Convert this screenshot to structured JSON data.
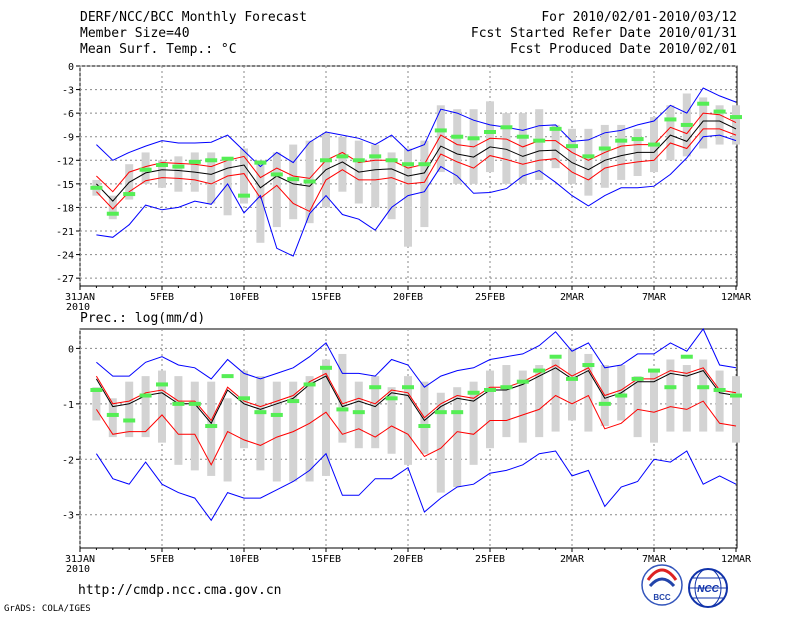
{
  "header": {
    "title": "DERF/NCC/BCC Monthly Forecast",
    "member_size": "Member Size=40",
    "for_period": "For 2010/02/01-2010/03/12",
    "fcst_started": "Fcst Started Refer Date 2010/01/31",
    "fcst_produced": "Fcst Produced Date 2010/02/01"
  },
  "footer": {
    "url": "http://cmdp.ncc.cma.gov.cn",
    "grads": "GrADS: COLA/IGES",
    "logo_bcc": "BCC",
    "logo_ncc": "NCC"
  },
  "colors": {
    "ensemble_mean": "#000000",
    "spread_inner": "#ff0000",
    "spread_outer": "#0000ff",
    "observed": "#55ee55",
    "box": "#d3d3d3",
    "grid": "#888888"
  },
  "chart_data": [
    {
      "type": "line",
      "title": "Mean Surf. Temp.: °C",
      "xlabel": "",
      "ylabel": "°C",
      "ylim": [
        -28,
        0
      ],
      "yticks": [
        0,
        -3,
        -6,
        -9,
        -12,
        -15,
        -18,
        -21,
        -24,
        -27
      ],
      "x_start": "31JAN 2010",
      "xtick_labels": [
        "31JAN",
        "5FEB",
        "10FEB",
        "15FEB",
        "20FEB",
        "25FEB",
        "2MAR",
        "7MAR",
        "12MAR"
      ],
      "xtick_days": [
        0,
        5,
        10,
        15,
        20,
        25,
        30,
        35,
        40
      ],
      "year_label": "2010",
      "days": [
        1,
        2,
        3,
        4,
        5,
        6,
        7,
        8,
        9,
        10,
        11,
        12,
        13,
        14,
        15,
        16,
        17,
        18,
        19,
        20,
        21,
        22,
        23,
        24,
        25,
        26,
        27,
        28,
        29,
        30,
        31,
        32,
        33,
        34,
        35,
        36,
        37,
        38,
        39,
        40
      ],
      "box_low": [
        -16.5,
        -19.5,
        -17.0,
        -15.0,
        -15.5,
        -16.0,
        -16.0,
        -17.5,
        -19.0,
        -17.5,
        -22.5,
        -20.5,
        -19.5,
        -20.0,
        -18.0,
        -16.0,
        -17.5,
        -18.0,
        -19.5,
        -23.0,
        -20.5,
        -13.5,
        -15.0,
        -15.0,
        -13.5,
        -15.0,
        -15.0,
        -14.5,
        -13.0,
        -15.0,
        -16.5,
        -15.5,
        -14.5,
        -14.0,
        -13.5,
        -12.0,
        -11.5,
        -10.5,
        -10.0,
        -10.0
      ],
      "box_high": [
        -14.5,
        -16.5,
        -12.5,
        -11.0,
        -12.0,
        -11.5,
        -11.0,
        -11.0,
        -12.0,
        -10.5,
        -12.0,
        -11.0,
        -10.0,
        -9.5,
        -8.5,
        -9.0,
        -9.5,
        -10.0,
        -11.0,
        -10.5,
        -9.5,
        -5.0,
        -5.5,
        -5.5,
        -4.5,
        -6.0,
        -6.0,
        -5.5,
        -7.5,
        -8.0,
        -8.0,
        -7.5,
        -7.5,
        -8.0,
        -6.5,
        -5.0,
        -3.5,
        -4.0,
        -5.0,
        -5.0
      ],
      "series": [
        {
          "name": "ensemble mean",
          "color": "#000000",
          "values": [
            -15.0,
            -17.2,
            -14.8,
            -13.6,
            -13.2,
            -13.3,
            -13.5,
            -13.8,
            -13.0,
            -12.6,
            -15.5,
            -14.0,
            -15.0,
            -15.3,
            -13.2,
            -12.2,
            -13.5,
            -13.2,
            -13.1,
            -14.0,
            -13.6,
            -10.2,
            -11.2,
            -11.6,
            -10.3,
            -10.6,
            -11.5,
            -10.8,
            -10.7,
            -12.3,
            -13.2,
            -12.0,
            -11.4,
            -11.0,
            -11.0,
            -8.8,
            -9.6,
            -7.0,
            -7.0,
            -8.0
          ]
        },
        {
          "name": "upper inner",
          "color": "#ff0000",
          "values": [
            -14.0,
            -16.0,
            -13.5,
            -12.8,
            -12.3,
            -12.4,
            -12.5,
            -12.8,
            -12.0,
            -11.5,
            -14.2,
            -13.0,
            -14.0,
            -14.3,
            -12.0,
            -11.0,
            -12.3,
            -12.0,
            -12.0,
            -13.0,
            -12.5,
            -8.8,
            -10.0,
            -10.3,
            -9.2,
            -9.3,
            -10.3,
            -9.5,
            -9.5,
            -11.0,
            -12.0,
            -11.0,
            -10.2,
            -10.0,
            -10.0,
            -7.8,
            -8.6,
            -6.0,
            -6.2,
            -7.2
          ]
        },
        {
          "name": "lower inner",
          "color": "#ff0000",
          "values": [
            -16.0,
            -18.2,
            -16.0,
            -14.6,
            -14.2,
            -14.3,
            -14.5,
            -15.0,
            -14.0,
            -13.7,
            -16.8,
            -15.2,
            -17.5,
            -18.5,
            -14.5,
            -13.2,
            -14.5,
            -14.5,
            -14.2,
            -15.0,
            -14.8,
            -11.2,
            -12.2,
            -13.0,
            -11.4,
            -11.9,
            -12.5,
            -12.0,
            -11.8,
            -13.5,
            -14.5,
            -13.0,
            -12.5,
            -12.2,
            -12.0,
            -9.8,
            -10.5,
            -8.0,
            -8.0,
            -8.8
          ]
        },
        {
          "name": "upper outer",
          "color": "#0000ff",
          "values": [
            -10.0,
            -12.0,
            -11.0,
            -10.2,
            -9.5,
            -9.8,
            -9.8,
            -9.7,
            -8.8,
            -10.8,
            -12.8,
            -11.0,
            -12.3,
            -9.7,
            -8.4,
            -8.8,
            -9.2,
            -10.0,
            -8.8,
            -10.8,
            -10.0,
            -5.5,
            -6.0,
            -6.9,
            -7.5,
            -7.8,
            -8.2,
            -7.6,
            -7.5,
            -9.6,
            -9.4,
            -8.5,
            -8.2,
            -7.5,
            -7.0,
            -5.0,
            -6.0,
            -2.8,
            -3.8,
            -4.6
          ]
        },
        {
          "name": "lower outer",
          "color": "#0000ff",
          "values": [
            -21.5,
            -21.8,
            -20.2,
            -17.7,
            -18.3,
            -18.0,
            -17.2,
            -17.6,
            -15.0,
            -18.7,
            -16.5,
            -23.2,
            -24.2,
            -18.8,
            -16.5,
            -18.9,
            -19.5,
            -20.9,
            -18.0,
            -16.5,
            -16.0,
            -12.8,
            -14.0,
            -16.2,
            -16.1,
            -15.6,
            -14.0,
            -13.3,
            -14.8,
            -16.5,
            -17.8,
            -16.5,
            -15.5,
            -15.5,
            -15.3,
            -13.8,
            -11.7,
            -9.0,
            -8.8,
            -9.5
          ]
        },
        {
          "name": "observed",
          "color": "#55ee55",
          "values": [
            -15.5,
            -18.8,
            -16.3,
            -13.2,
            -12.6,
            -12.8,
            -12.2,
            -12.0,
            -11.8,
            -16.5,
            -12.3,
            -13.8,
            -14.4,
            -14.7,
            -12.0,
            -11.5,
            -12.0,
            -11.5,
            -12.0,
            -12.5,
            -12.5,
            -8.2,
            -9.0,
            -9.2,
            -8.4,
            -7.8,
            -9.0,
            -9.5,
            -8.0,
            -10.2,
            -11.5,
            -10.5,
            -9.5,
            -9.3,
            -10.0,
            -6.8,
            -7.5,
            -4.8,
            -5.8,
            -6.5
          ]
        }
      ]
    },
    {
      "type": "line",
      "title": "Prec.: log(mm/d)",
      "xlabel": "",
      "ylabel": "log(mm/d)",
      "ylim": [
        -3.6,
        0.35
      ],
      "yticks": [
        0,
        -1,
        -2,
        -3
      ],
      "x_start": "31JAN 2010",
      "xtick_labels": [
        "31JAN",
        "5FEB",
        "10FEB",
        "15FEB",
        "20FEB",
        "25FEB",
        "2MAR",
        "7MAR",
        "12MAR"
      ],
      "xtick_days": [
        0,
        5,
        10,
        15,
        20,
        25,
        30,
        35,
        40
      ],
      "year_label": "2010",
      "days": [
        1,
        2,
        3,
        4,
        5,
        6,
        7,
        8,
        9,
        10,
        11,
        12,
        13,
        14,
        15,
        16,
        17,
        18,
        19,
        20,
        21,
        22,
        23,
        24,
        25,
        26,
        27,
        28,
        29,
        30,
        31,
        32,
        33,
        34,
        35,
        36,
        37,
        38,
        39,
        40
      ],
      "box_low": [
        -1.3,
        -1.6,
        -1.6,
        -1.6,
        -1.7,
        -2.1,
        -2.2,
        -2.3,
        -2.4,
        -1.8,
        -2.2,
        -2.4,
        -2.4,
        -2.4,
        -2.3,
        -1.7,
        -1.8,
        -1.8,
        -1.9,
        -2.1,
        -1.9,
        -2.6,
        -2.5,
        -2.1,
        -1.8,
        -1.6,
        -1.7,
        -1.6,
        -1.5,
        -1.3,
        -1.5,
        -1.4,
        -1.3,
        -1.6,
        -1.7,
        -1.5,
        -1.5,
        -1.5,
        -1.5,
        -1.7
      ],
      "box_high": [
        -0.7,
        -0.9,
        -0.6,
        -0.5,
        -0.4,
        -0.5,
        -0.6,
        -0.6,
        -0.9,
        -0.4,
        -0.5,
        -0.6,
        -0.6,
        -0.5,
        -0.2,
        -0.1,
        -0.6,
        -0.5,
        -0.7,
        -0.5,
        -0.6,
        -0.8,
        -0.7,
        -0.6,
        -0.4,
        -0.3,
        -0.4,
        -0.3,
        -0.2,
        0.0,
        -0.1,
        -0.3,
        -0.3,
        -0.5,
        -0.4,
        -0.2,
        -0.3,
        -0.2,
        -0.4,
        -0.5
      ],
      "series": [
        {
          "name": "ensemble mean",
          "color": "#000000",
          "values": [
            -0.55,
            -1.05,
            -1.0,
            -0.85,
            -0.8,
            -1.0,
            -1.0,
            -1.35,
            -0.75,
            -1.0,
            -1.1,
            -1.0,
            -0.9,
            -0.65,
            -0.5,
            -1.05,
            -0.95,
            -1.05,
            -0.8,
            -0.85,
            -1.3,
            -1.05,
            -0.9,
            -0.95,
            -0.75,
            -0.75,
            -0.65,
            -0.5,
            -0.35,
            -0.55,
            -0.4,
            -0.9,
            -0.8,
            -0.6,
            -0.6,
            -0.45,
            -0.5,
            -0.4,
            -0.8,
            -0.85
          ]
        },
        {
          "name": "upper inner",
          "color": "#ff0000",
          "values": [
            -0.5,
            -1.0,
            -0.95,
            -0.8,
            -0.75,
            -0.95,
            -0.95,
            -1.3,
            -0.7,
            -0.95,
            -1.05,
            -0.95,
            -0.85,
            -0.6,
            -0.45,
            -1.0,
            -0.9,
            -1.0,
            -0.75,
            -0.8,
            -1.25,
            -1.0,
            -0.85,
            -0.9,
            -0.7,
            -0.7,
            -0.6,
            -0.45,
            -0.3,
            -0.5,
            -0.35,
            -0.85,
            -0.75,
            -0.55,
            -0.55,
            -0.4,
            -0.45,
            -0.35,
            -0.75,
            -0.8
          ]
        },
        {
          "name": "lower inner",
          "color": "#ff0000",
          "values": [
            -1.1,
            -1.55,
            -1.5,
            -1.5,
            -1.2,
            -1.55,
            -1.55,
            -2.1,
            -1.5,
            -1.65,
            -1.75,
            -1.6,
            -1.5,
            -1.35,
            -1.15,
            -1.55,
            -1.45,
            -1.6,
            -1.4,
            -1.55,
            -1.95,
            -1.8,
            -1.5,
            -1.55,
            -1.3,
            -1.3,
            -1.2,
            -1.1,
            -0.85,
            -1.0,
            -0.85,
            -1.45,
            -1.35,
            -1.1,
            -1.15,
            -1.05,
            -1.1,
            -0.95,
            -1.35,
            -1.4
          ]
        },
        {
          "name": "upper outer",
          "color": "#0000ff",
          "values": [
            -0.25,
            -0.5,
            -0.5,
            -0.25,
            -0.15,
            -0.3,
            -0.35,
            -0.55,
            -0.2,
            -0.45,
            -0.55,
            -0.45,
            -0.35,
            -0.15,
            0.1,
            -0.45,
            -0.45,
            -0.5,
            -0.2,
            -0.3,
            -0.7,
            -0.5,
            -0.4,
            -0.35,
            -0.2,
            -0.15,
            -0.1,
            0.05,
            0.3,
            -0.05,
            0.1,
            -0.35,
            -0.3,
            -0.1,
            -0.1,
            0.1,
            -0.05,
            0.35,
            -0.3,
            -0.35
          ]
        },
        {
          "name": "lower outer",
          "color": "#0000ff",
          "values": [
            -1.9,
            -2.35,
            -2.45,
            -2.05,
            -2.45,
            -2.6,
            -2.7,
            -3.1,
            -2.6,
            -2.7,
            -2.7,
            -2.55,
            -2.4,
            -2.2,
            -1.9,
            -2.65,
            -2.65,
            -2.35,
            -2.35,
            -2.15,
            -2.95,
            -2.7,
            -2.5,
            -2.45,
            -2.25,
            -2.2,
            -2.1,
            -1.9,
            -1.85,
            -2.3,
            -2.2,
            -2.85,
            -2.5,
            -2.4,
            -2.0,
            -2.05,
            -1.85,
            -2.45,
            -2.3,
            -2.45
          ]
        },
        {
          "name": "observed",
          "color": "#55ee55",
          "values": [
            -0.75,
            -1.2,
            -1.3,
            -0.85,
            -0.65,
            -1.0,
            -1.0,
            -1.4,
            -0.5,
            -0.9,
            -1.15,
            -1.2,
            -0.95,
            -0.65,
            -0.35,
            -1.1,
            -1.15,
            -0.7,
            -0.9,
            -0.7,
            -1.4,
            -1.15,
            -1.15,
            -0.8,
            -0.75,
            -0.7,
            -0.6,
            -0.4,
            -0.15,
            -0.55,
            -0.3,
            -1.0,
            -0.85,
            -0.55,
            -0.4,
            -0.7,
            -0.15,
            -0.7,
            -0.75,
            -0.85
          ]
        }
      ]
    }
  ]
}
